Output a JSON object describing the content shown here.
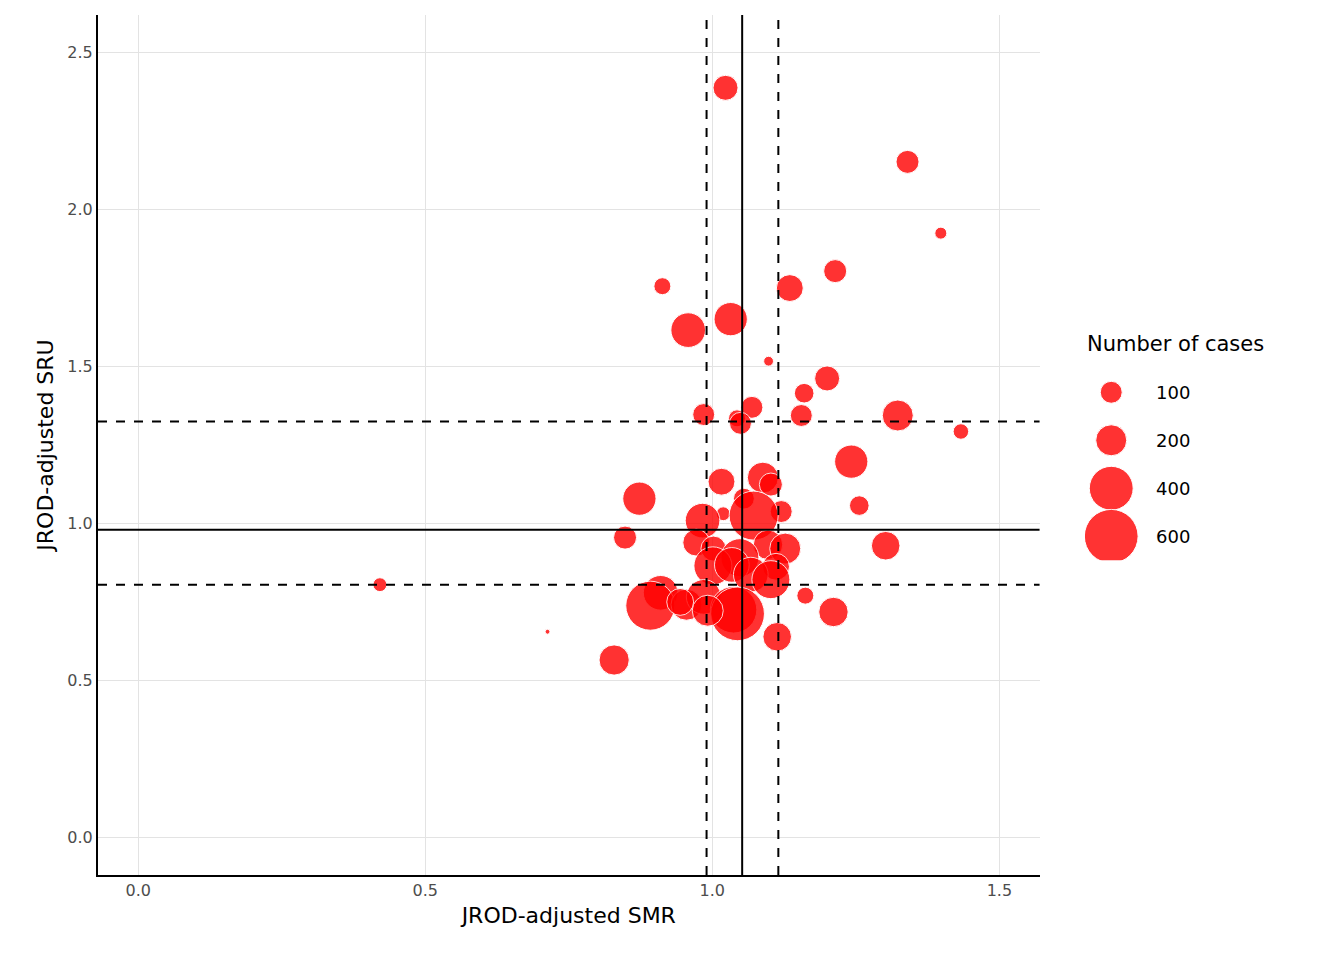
{
  "chart_data": {
    "type": "scatter",
    "marker": "bubble",
    "color": "#ff0000",
    "x_label": "JROD-adjusted SMR",
    "y_label": "JROD-adjusted SRU",
    "xlim": [
      -0.07,
      1.57
    ],
    "ylim": [
      -0.12,
      2.62
    ],
    "xticks": [
      {
        "value": 0,
        "label": "0.0"
      },
      {
        "value": 0.5,
        "label": "0.5"
      },
      {
        "value": 1,
        "label": "1.0"
      },
      {
        "value": 1.5,
        "label": "1.5"
      }
    ],
    "yticks": [
      {
        "value": 0,
        "label": "0.0"
      },
      {
        "value": 0.5,
        "label": "0.5"
      },
      {
        "value": 1,
        "label": "1.0"
      },
      {
        "value": 1.5,
        "label": "1.5"
      },
      {
        "value": 2,
        "label": "2.0"
      },
      {
        "value": 2.5,
        "label": "2.5"
      }
    ],
    "grid": true,
    "reference_lines": [
      {
        "axis": "x",
        "value": 1.052,
        "line_style": "solid"
      },
      {
        "axis": "x",
        "value": 0.99,
        "line_style": "dashed"
      },
      {
        "axis": "x",
        "value": 1.115,
        "line_style": "dashed"
      },
      {
        "axis": "y",
        "value": 0.98,
        "line_style": "solid"
      },
      {
        "axis": "y",
        "value": 0.805,
        "line_style": "dashed"
      },
      {
        "axis": "y",
        "value": 1.325,
        "line_style": "dashed"
      }
    ],
    "size_legend": {
      "title": "Number of cases",
      "values": [
        100,
        200,
        400,
        600
      ]
    },
    "x": [
      1.023,
      1.34,
      1.398,
      0.913,
      1.214,
      1.135,
      0.958,
      1.032,
      1.098,
      1.2,
      1.16,
      1.069,
      0.985,
      1.043,
      1.049,
      1.155,
      1.323,
      1.433,
      1.242,
      1.088,
      1.016,
      1.102,
      0.873,
      1.055,
      1.256,
      1.019,
      1.12,
      1.072,
      0.983,
      0.848,
      0.972,
      1.097,
      1.302,
      1.127,
      1.002,
      1.048,
      1.001,
      1.111,
      1.034,
      1.067,
      1.102,
      0.421,
      0.91,
      1.162,
      0.892,
      0.955,
      0.985,
      1.037,
      1.044,
      1.211,
      0.992,
      0.713,
      1.113,
      0.829,
      0.944
    ],
    "values": [
      2.388,
      2.152,
      1.925,
      1.756,
      1.804,
      1.75,
      1.616,
      1.651,
      1.517,
      1.462,
      1.415,
      1.37,
      1.347,
      1.335,
      1.319,
      1.344,
      1.344,
      1.293,
      1.197,
      1.146,
      1.133,
      1.124,
      1.079,
      1.079,
      1.057,
      1.031,
      1.038,
      1.025,
      1.009,
      0.955,
      0.939,
      0.932,
      0.929,
      0.92,
      0.92,
      0.891,
      0.865,
      0.862,
      0.868,
      0.837,
      0.821,
      0.805,
      0.779,
      0.77,
      0.738,
      0.741,
      0.766,
      0.725,
      0.712,
      0.718,
      0.722,
      0.655,
      0.639,
      0.565,
      0.75
    ],
    "sizes": [
      130,
      110,
      30,
      60,
      110,
      150,
      250,
      230,
      20,
      130,
      80,
      100,
      100,
      60,
      100,
      100,
      200,
      50,
      230,
      200,
      150,
      110,
      230,
      90,
      80,
      40,
      100,
      500,
      250,
      110,
      150,
      180,
      170,
      200,
      130,
      300,
      300,
      150,
      250,
      250,
      300,
      40,
      250,
      60,
      500,
      200,
      250,
      450,
      600,
      180,
      200,
      5,
      170,
      190,
      150
    ]
  }
}
